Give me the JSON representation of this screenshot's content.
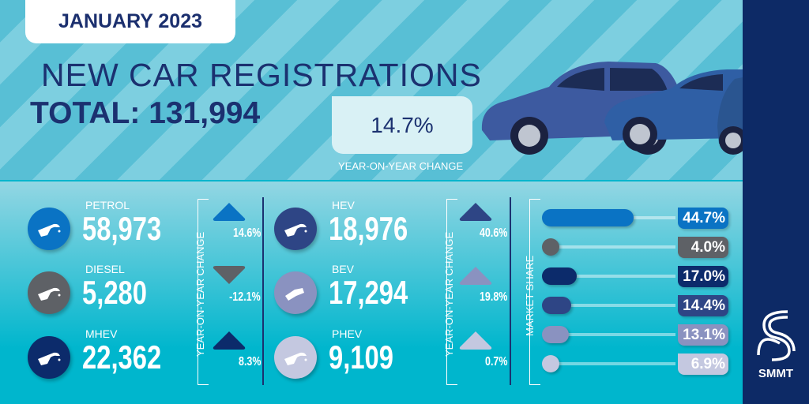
{
  "header": {
    "date": "JANUARY 2023",
    "title": "NEW CAR REGISTRATIONS",
    "total": "TOTAL: 131,994",
    "yoy_value": "14.7%",
    "yoy_label": "YEAR-ON-YEAR CHANGE"
  },
  "fuels": [
    {
      "label": "PETROL",
      "value": "58,973",
      "yoy": "14.6%",
      "direction": "up",
      "share": "44.7%",
      "share_value": 44.7,
      "color": "#0a73c4"
    },
    {
      "label": "DIESEL",
      "value": "5,280",
      "yoy": "-12.1%",
      "direction": "down",
      "share": "4.0%",
      "share_value": 4.0,
      "color": "#5e6166"
    },
    {
      "label": "MHEV",
      "value": "22,362",
      "yoy": "8.3%",
      "direction": "up",
      "share": "17.0%",
      "share_value": 17.0,
      "color": "#0c2b6b"
    },
    {
      "label": "HEV",
      "value": "18,976",
      "yoy": "40.6%",
      "direction": "up",
      "share": "14.4%",
      "share_value": 14.4,
      "color": "#2e4585"
    },
    {
      "label": "BEV",
      "value": "17,294",
      "yoy": "19.8%",
      "direction": "up",
      "share": "13.1%",
      "share_value": 13.1,
      "color": "#8a92c0"
    },
    {
      "label": "PHEV",
      "value": "9,109",
      "yoy": "0.7%",
      "direction": "up",
      "share": "6.9%",
      "share_value": 6.9,
      "color": "#c4c8e0"
    }
  ],
  "yoy_axis_label": "YEAR-ON-YEAR CHANGE",
  "share_axis_label": "MARKET SHARE",
  "logo": {
    "text": "SMMT"
  }
}
